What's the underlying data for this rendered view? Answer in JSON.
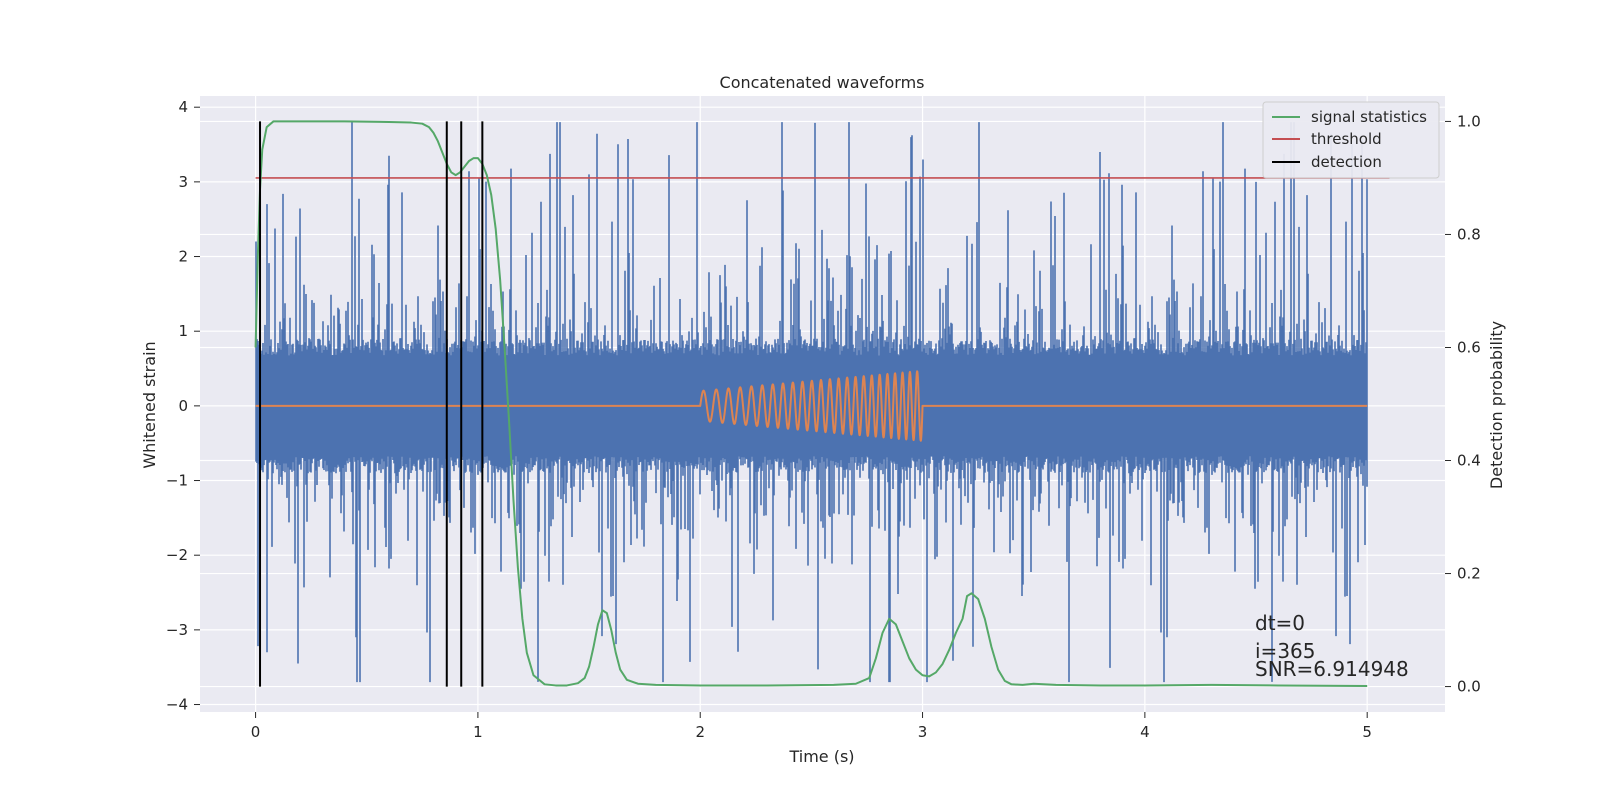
{
  "chart_data": {
    "type": "line",
    "title": "Concatenated waveforms",
    "xlabel": "Time (s)",
    "ylabel_left": "Whitened strain",
    "ylabel_right": "Detection probability",
    "xlim": [
      -0.25,
      5.35
    ],
    "ylim_left": [
      -4.1,
      4.15
    ],
    "ylim_right": [
      -0.045,
      1.045
    ],
    "x_ticks": [
      0,
      1,
      2,
      3,
      4,
      5
    ],
    "x_tick_labels": [
      "0",
      "1",
      "2",
      "3",
      "4",
      "5"
    ],
    "y_left_ticks": [
      -4,
      -3,
      -2,
      -1,
      0,
      1,
      2,
      3,
      4
    ],
    "y_left_tick_labels": [
      "−4",
      "−3",
      "−2",
      "−1",
      "0",
      "1",
      "2",
      "3",
      "4"
    ],
    "y_right_ticks": [
      0.0,
      0.2,
      0.4,
      0.6,
      0.8,
      1.0
    ],
    "y_right_tick_labels": [
      "0.0",
      "0.2",
      "0.4",
      "0.6",
      "0.8",
      "1.0"
    ],
    "grid": true,
    "legend_position": "top-right",
    "legend": [
      {
        "label": "signal statistics",
        "color": "#55a868"
      },
      {
        "label": "threshold",
        "color": "#c44e52"
      },
      {
        "label": "detection",
        "color": "#000000"
      }
    ],
    "series": [
      {
        "role": "whitened strain noise",
        "axis": "left",
        "color": "#4c72b0",
        "x_range": [
          0,
          5
        ],
        "core_amplitude": 0.75,
        "peak_max": [
          3.8,
          -3.7
        ],
        "notable_spikes": [
          {
            "x": 0.6,
            "y": 3.35
          },
          {
            "x": 1.5,
            "y": 3.1
          },
          {
            "x": 2.95,
            "y": 3.6
          },
          {
            "x": 3.0,
            "y": 3.3
          },
          {
            "x": 3.8,
            "y": 3.4
          },
          {
            "x": 4.35,
            "y": 3.8
          },
          {
            "x": 4.5,
            "y": 3.0
          },
          {
            "x": 0.05,
            "y": -3.3
          },
          {
            "x": 0.45,
            "y": -3.1
          },
          {
            "x": 2.85,
            "y": -3.7
          },
          {
            "x": 4.1,
            "y": -3.1
          }
        ]
      },
      {
        "role": "injected signal",
        "axis": "left",
        "color": "#dd8452",
        "x_range": [
          2.0,
          3.0
        ],
        "amplitude_start": 0.2,
        "amplitude_end": 0.47,
        "cycles": 24,
        "baseline": 0
      },
      {
        "name": "signal statistics",
        "axis": "right",
        "color": "#55a868",
        "x": [
          0.0,
          0.01,
          0.02,
          0.03,
          0.05,
          0.08,
          0.12,
          0.2,
          0.4,
          0.6,
          0.7,
          0.75,
          0.78,
          0.8,
          0.82,
          0.84,
          0.86,
          0.88,
          0.9,
          0.92,
          0.94,
          0.96,
          0.98,
          1.0,
          1.02,
          1.04,
          1.06,
          1.08,
          1.1,
          1.12,
          1.14,
          1.16,
          1.18,
          1.2,
          1.22,
          1.25,
          1.3,
          1.35,
          1.4,
          1.45,
          1.48,
          1.5,
          1.52,
          1.54,
          1.56,
          1.58,
          1.6,
          1.62,
          1.64,
          1.67,
          1.72,
          1.8,
          2.0,
          2.3,
          2.6,
          2.7,
          2.76,
          2.79,
          2.82,
          2.85,
          2.88,
          2.91,
          2.94,
          2.97,
          3.0,
          3.03,
          3.06,
          3.09,
          3.12,
          3.15,
          3.18,
          3.2,
          3.22,
          3.25,
          3.28,
          3.31,
          3.34,
          3.37,
          3.4,
          3.45,
          3.5,
          3.6,
          3.8,
          4.0,
          4.3,
          4.6,
          5.0
        ],
        "y": [
          0.6,
          0.76,
          0.88,
          0.95,
          0.99,
          1.0,
          1.0,
          1.0,
          1.0,
          0.999,
          0.998,
          0.996,
          0.99,
          0.98,
          0.965,
          0.945,
          0.925,
          0.91,
          0.905,
          0.91,
          0.92,
          0.93,
          0.935,
          0.935,
          0.925,
          0.905,
          0.87,
          0.81,
          0.72,
          0.6,
          0.47,
          0.33,
          0.21,
          0.12,
          0.06,
          0.02,
          0.004,
          0.002,
          0.002,
          0.006,
          0.015,
          0.035,
          0.07,
          0.11,
          0.135,
          0.13,
          0.1,
          0.06,
          0.03,
          0.012,
          0.005,
          0.003,
          0.002,
          0.002,
          0.003,
          0.005,
          0.015,
          0.05,
          0.095,
          0.12,
          0.11,
          0.08,
          0.05,
          0.03,
          0.02,
          0.018,
          0.025,
          0.04,
          0.065,
          0.095,
          0.12,
          0.16,
          0.165,
          0.155,
          0.12,
          0.07,
          0.03,
          0.01,
          0.004,
          0.003,
          0.005,
          0.003,
          0.002,
          0.002,
          0.003,
          0.002,
          0.001
        ]
      },
      {
        "name": "threshold",
        "axis": "right",
        "color": "#c44e52",
        "x": [
          0.0,
          5.1
        ],
        "y": [
          0.9,
          0.9
        ]
      },
      {
        "name": "detection",
        "axis": "right",
        "color": "#000000",
        "type": "vlines",
        "x": [
          0.02,
          0.86,
          0.925,
          1.02
        ],
        "y_range": [
          0.0,
          1.0
        ]
      }
    ],
    "annotations": [
      "dt=0",
      "i=365",
      "SNR=6.914948"
    ]
  }
}
